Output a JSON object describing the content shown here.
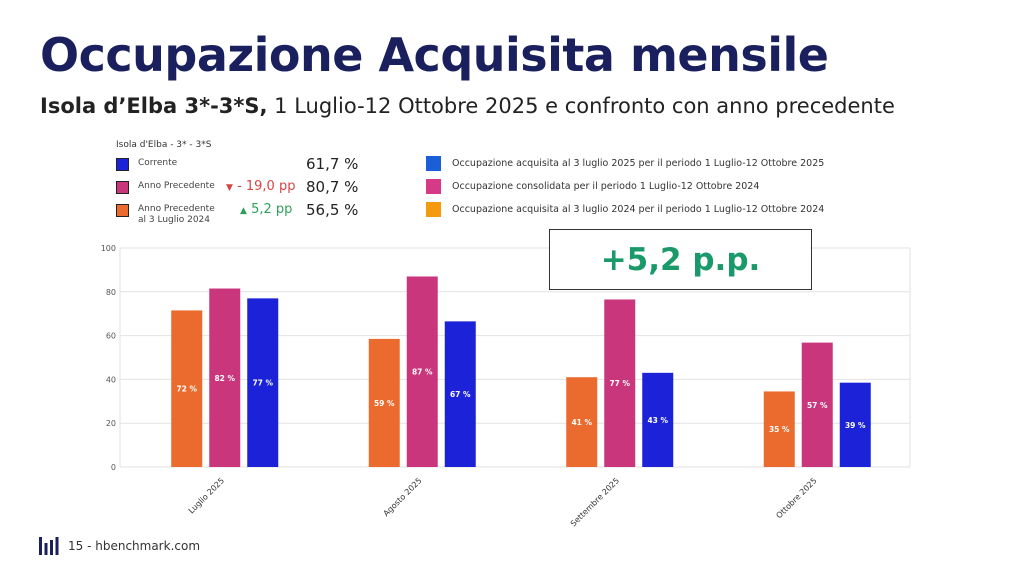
{
  "slide": {
    "title": "Occupazione Acquisita mensile",
    "subtitle_bold": "Isola d’Elba 3*-3*S,",
    "subtitle_rest": " 1 Luglio-12 Ottobre 2025 e confronto con anno precedente"
  },
  "legend": {
    "heading": "Isola d'Elba - 3* - 3*S",
    "items": [
      {
        "label": "Corrente",
        "color": "#1b22d8",
        "delta": "",
        "delta_dir": "",
        "value": "61,7 %"
      },
      {
        "label": "Anno Precedente",
        "color": "#c9367c",
        "delta": "- 19,0 pp",
        "delta_dir": "down",
        "value": "80,7 %"
      },
      {
        "label": "Anno Precedente al 3 Luglio 2024",
        "color": "#eb6a2e",
        "delta": "5,2 pp",
        "delta_dir": "up",
        "value": "56,5 %"
      }
    ],
    "delta_colors": {
      "down": "#d64545",
      "up": "#2fa05a"
    }
  },
  "series_legend": [
    {
      "label": "Occupazione acquisita al 3 luglio 2025 per il periodo 1 Luglio-12 Ottobre 2025",
      "color": "#1b5fd8"
    },
    {
      "label": "Occupazione consolidata per il periodo 1 Luglio-12 Ottobre 2024",
      "color": "#d63a86"
    },
    {
      "label": "Occupazione acquisita al 3 luglio 2024 per il periodo 1 Luglio-12 Ottobre 2024",
      "color": "#f59a0c"
    }
  ],
  "callout": {
    "text": "+5,2 p.p."
  },
  "chart_data": {
    "type": "bar",
    "categories": [
      "Luglio 2025",
      "Agosto 2025",
      "Settembre 2025",
      "Ottobre 2025"
    ],
    "series": [
      {
        "values": [
          71.5,
          58.5,
          41,
          34.5
        ],
        "labels": [
          "72 %",
          "59 %",
          "41 %",
          "35 %"
        ],
        "color": "#eb6a2e"
      },
      {
        "values": [
          81.5,
          87,
          76.5,
          56.8
        ],
        "labels": [
          "82 %",
          "87 %",
          "77 %",
          "57 %"
        ],
        "color": "#c9367c"
      },
      {
        "values": [
          77,
          66.5,
          43,
          38.5
        ],
        "labels": [
          "77 %",
          "67 %",
          "43 %",
          "39 %"
        ],
        "color": "#1b22d8"
      }
    ],
    "ylim": [
      0,
      100
    ],
    "yticks": [
      0,
      20,
      40,
      60,
      80,
      100
    ],
    "grid": true
  },
  "footer": {
    "text": "15 - hbenchmark.com"
  }
}
